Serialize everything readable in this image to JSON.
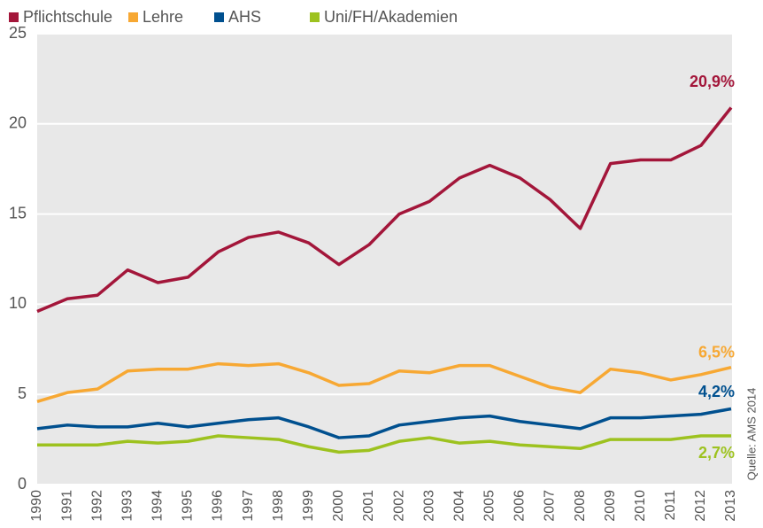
{
  "chart_data": {
    "type": "line",
    "categories": [
      "1990",
      "1991",
      "1992",
      "1993",
      "1994",
      "1995",
      "1996",
      "1997",
      "1998",
      "1999",
      "2000",
      "2001",
      "2002",
      "2003",
      "2004",
      "2005",
      "2006",
      "2007",
      "2008",
      "2009",
      "2010",
      "2011",
      "2012",
      "2013"
    ],
    "series": [
      {
        "name": "Pflichtschule",
        "color": "#a3163a",
        "values": [
          9.6,
          10.3,
          10.5,
          11.9,
          11.2,
          11.5,
          12.9,
          13.7,
          14.0,
          13.4,
          12.2,
          13.3,
          15.0,
          15.7,
          17.0,
          17.7,
          17.0,
          15.8,
          14.2,
          17.8,
          18.0,
          18.0,
          18.8,
          20.9
        ],
        "value_labels": [
          null,
          null,
          null,
          null,
          null,
          null,
          null,
          null,
          null,
          null,
          null,
          null,
          null,
          null,
          null,
          null,
          null,
          null,
          null,
          null,
          null,
          null,
          null,
          "20,9%"
        ]
      },
      {
        "name": "Lehre",
        "color": "#f7a833",
        "values": [
          4.6,
          5.1,
          5.3,
          6.3,
          6.4,
          6.4,
          6.7,
          6.6,
          6.7,
          6.2,
          5.5,
          5.6,
          6.3,
          6.2,
          6.6,
          6.6,
          6.0,
          5.4,
          5.1,
          6.4,
          6.2,
          5.8,
          6.1,
          6.5
        ],
        "value_labels": [
          null,
          null,
          null,
          null,
          null,
          null,
          null,
          null,
          null,
          null,
          null,
          null,
          null,
          null,
          null,
          null,
          null,
          null,
          null,
          null,
          null,
          null,
          null,
          "6,5%"
        ]
      },
      {
        "name": "AHS",
        "color": "#00508f",
        "values": [
          3.1,
          3.3,
          3.2,
          3.2,
          3.4,
          3.2,
          3.4,
          3.6,
          3.7,
          3.2,
          2.6,
          2.7,
          3.3,
          3.5,
          3.7,
          3.8,
          3.5,
          3.3,
          3.1,
          3.7,
          3.7,
          3.8,
          3.9,
          4.2
        ],
        "value_labels": [
          null,
          null,
          null,
          null,
          null,
          null,
          null,
          null,
          null,
          null,
          null,
          null,
          null,
          null,
          null,
          null,
          null,
          null,
          null,
          null,
          null,
          null,
          null,
          "4,2%"
        ]
      },
      {
        "name": "Uni/FH/Akademien",
        "color": "#9dc21f",
        "values": [
          2.2,
          2.2,
          2.2,
          2.4,
          2.3,
          2.4,
          2.7,
          2.6,
          2.5,
          2.1,
          1.8,
          1.9,
          2.4,
          2.6,
          2.3,
          2.4,
          2.2,
          2.1,
          2.0,
          2.5,
          2.5,
          2.5,
          2.7,
          2.7
        ],
        "value_labels": [
          null,
          null,
          null,
          null,
          null,
          null,
          null,
          null,
          null,
          null,
          null,
          null,
          null,
          null,
          null,
          null,
          null,
          null,
          null,
          null,
          null,
          null,
          null,
          "2,7%"
        ]
      }
    ],
    "ylim": [
      0,
      25
    ],
    "yticks": [
      0,
      5,
      10,
      15,
      20,
      25
    ],
    "grid": true,
    "legend": "top",
    "source": "Quelle: AMS 2014"
  }
}
